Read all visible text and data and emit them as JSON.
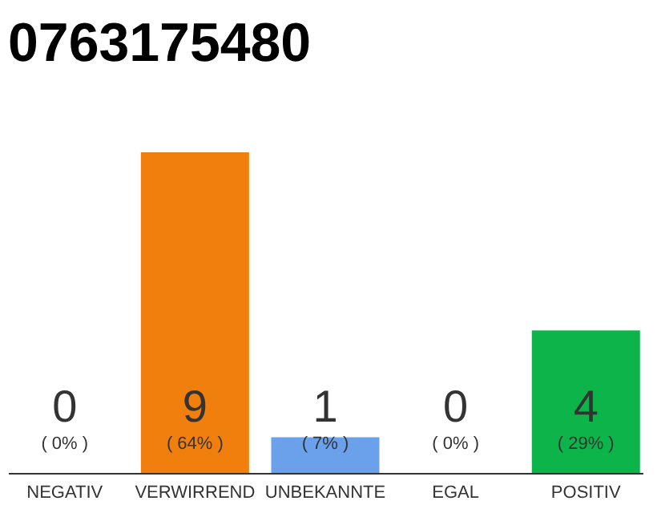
{
  "chart_data": {
    "type": "bar",
    "title": "0763175480",
    "categories": [
      "NEGATIV",
      "VERWIRREND",
      "UNBEKANNTE",
      "EGAL",
      "POSITIV"
    ],
    "values": [
      0,
      9,
      1,
      0,
      4
    ],
    "colors": [
      "#cccccc",
      "#f07f0d",
      "#6aa1ea",
      "#cccccc",
      "#0db44a"
    ],
    "data_labels": true,
    "annotations": [
      "( 0% )",
      "( 64% )",
      "( 7% )",
      "( 0% )",
      "( 29% )"
    ]
  }
}
